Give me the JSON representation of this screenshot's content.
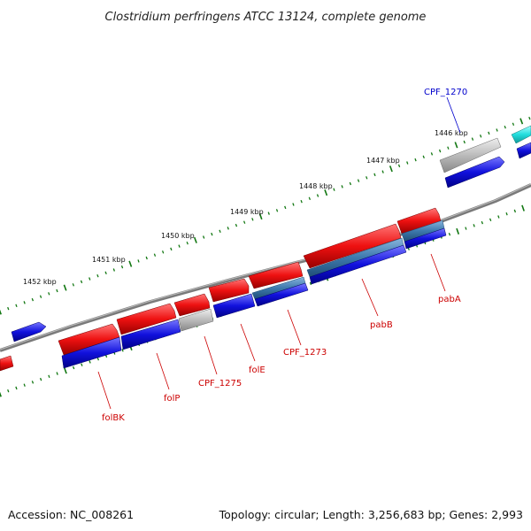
{
  "title": "Clostridium perfringens ATCC 13124, complete genome",
  "footer": {
    "accession": "Accession: NC_008261",
    "summary": "Topology: circular; Length: 3,256,683 bp; Genes: 2,993"
  },
  "colors": {
    "backbone": "#777777",
    "tick": "#117711",
    "gene_red": "#ee1111",
    "gene_blue": "#1111dd",
    "gene_gray": "#bbbbbb",
    "gene_steel": "#3d79ad",
    "gene_cyan": "#22dddd",
    "label_red": "#cc0000",
    "label_blue": "#0000cc"
  },
  "ruler": [
    {
      "label": "1446 kbp"
    },
    {
      "label": "1447 kbp"
    },
    {
      "label": "1448 kbp"
    },
    {
      "label": "1449 kbp"
    },
    {
      "label": "1450 kbp"
    },
    {
      "label": "1451 kbp"
    },
    {
      "label": "1452 kbp"
    }
  ],
  "gene_labels": [
    {
      "name": "CPF_1270",
      "color": "label_blue"
    },
    {
      "name": "pabA",
      "color": "label_red"
    },
    {
      "name": "pabB",
      "color": "label_red"
    },
    {
      "name": "CPF_1273",
      "color": "label_red"
    },
    {
      "name": "folE",
      "color": "label_red"
    },
    {
      "name": "CPF_1275",
      "color": "label_red"
    },
    {
      "name": "folP",
      "color": "label_red"
    },
    {
      "name": "folBK",
      "color": "label_red"
    }
  ]
}
